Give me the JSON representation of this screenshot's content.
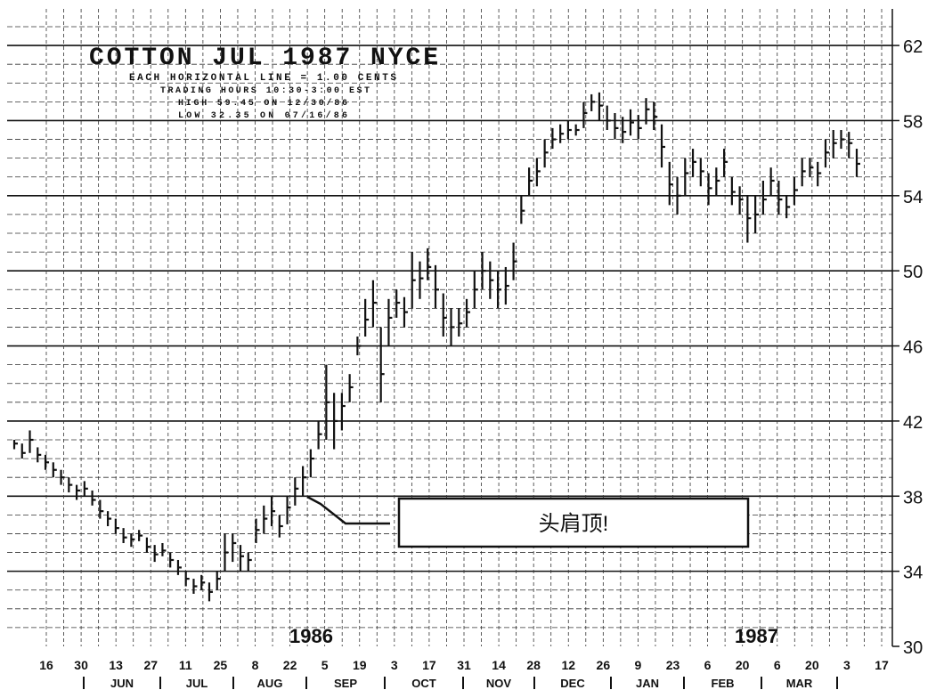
{
  "chart_data": {
    "type": "bar",
    "title": "COTTON JUL 1987 NYCE",
    "subtitle_lines": [
      "EACH HORIZONTAL LINE = 1.00 CENTS",
      "TRADING HOURS 10:30-3:00 EST",
      "HIGH 59.45 ON 12/30/86",
      "LOW 32.35 ON 07/16/86"
    ],
    "ylim": [
      30,
      63
    ],
    "y_ticks": [
      30,
      34,
      38,
      42,
      46,
      50,
      54,
      58,
      62
    ],
    "grid": true,
    "x_tick_labels": [
      "16",
      "30",
      "13",
      "27",
      "11",
      "25",
      "8",
      "22",
      "5",
      "19",
      "3",
      "17",
      "31",
      "14",
      "28",
      "12",
      "26",
      "9",
      "23",
      "6",
      "20",
      "6",
      "20",
      "3",
      "17"
    ],
    "month_labels": [
      "JUN",
      "JUL",
      "AUG",
      "SEP",
      "OCT",
      "NOV",
      "DEC",
      "JAN",
      "FEB",
      "MAR"
    ],
    "year_labels": [
      "1986",
      "1987"
    ],
    "annotation": "头肩顶!",
    "series": [
      {
        "values": [
          [
            40.5,
            41.0,
            40.8
          ],
          [
            40.0,
            40.8,
            40.3
          ],
          [
            40.3,
            41.5,
            41.0
          ],
          [
            39.8,
            40.6,
            40.2
          ],
          [
            39.4,
            40.2,
            39.8
          ],
          [
            39.0,
            39.8,
            39.4
          ],
          [
            38.6,
            39.4,
            39.0
          ],
          [
            38.2,
            39.0,
            38.6
          ],
          [
            37.8,
            38.6,
            38.3
          ],
          [
            38.0,
            38.8,
            38.4
          ],
          [
            37.5,
            38.3,
            37.8
          ],
          [
            36.8,
            37.8,
            37.2
          ],
          [
            36.4,
            37.2,
            36.8
          ],
          [
            36.0,
            36.8,
            36.3
          ],
          [
            35.5,
            36.3,
            35.8
          ],
          [
            35.3,
            36.0,
            35.7
          ],
          [
            35.6,
            36.2,
            35.9
          ],
          [
            35.0,
            35.8,
            35.3
          ],
          [
            34.5,
            35.4,
            34.9
          ],
          [
            34.8,
            35.5,
            35.1
          ],
          [
            34.2,
            35.0,
            34.6
          ],
          [
            33.8,
            34.6,
            34.2
          ],
          [
            33.2,
            34.0,
            33.6
          ],
          [
            32.8,
            33.6,
            33.2
          ],
          [
            33.0,
            33.8,
            33.4
          ],
          [
            32.4,
            33.4,
            32.9
          ],
          [
            33.0,
            34.0,
            33.6
          ],
          [
            34.0,
            36.0,
            35.0
          ],
          [
            34.5,
            36.0,
            35.5
          ],
          [
            34.0,
            35.4,
            34.8
          ],
          [
            34.0,
            35.0,
            34.6
          ],
          [
            35.5,
            36.8,
            36.2
          ],
          [
            36.0,
            37.5,
            36.8
          ],
          [
            36.4,
            38.0,
            37.2
          ],
          [
            35.8,
            37.0,
            36.4
          ],
          [
            36.5,
            38.0,
            37.4
          ],
          [
            37.5,
            39.0,
            38.4
          ],
          [
            38.0,
            39.6,
            39.0
          ],
          [
            39.0,
            40.5,
            40.0
          ],
          [
            40.5,
            42.0,
            41.3
          ],
          [
            41.0,
            45.0,
            43.0
          ],
          [
            40.5,
            43.5,
            42.0
          ],
          [
            41.5,
            43.5,
            42.8
          ],
          [
            43.0,
            44.5,
            43.8
          ],
          [
            45.5,
            46.5,
            46.0
          ],
          [
            46.5,
            48.5,
            47.4
          ],
          [
            47.0,
            49.5,
            48.3
          ],
          [
            43.0,
            47.0,
            44.5
          ],
          [
            46.0,
            48.5,
            47.5
          ],
          [
            47.5,
            49.0,
            48.3
          ],
          [
            47.0,
            48.6,
            47.8
          ],
          [
            48.0,
            51.0,
            49.5
          ],
          [
            48.5,
            50.5,
            49.6
          ],
          [
            49.5,
            51.2,
            50.2
          ],
          [
            48.0,
            50.3,
            49.0
          ],
          [
            46.5,
            48.8,
            47.5
          ],
          [
            46.0,
            48.0,
            47.0
          ],
          [
            46.5,
            48.0,
            47.2
          ],
          [
            47.0,
            48.5,
            47.8
          ],
          [
            48.0,
            50.0,
            49.0
          ],
          [
            49.0,
            51.0,
            50.0
          ],
          [
            48.5,
            50.5,
            49.5
          ],
          [
            48.0,
            50.0,
            49.0
          ],
          [
            48.2,
            50.2,
            49.2
          ],
          [
            49.5,
            51.5,
            50.5
          ],
          [
            52.5,
            54.0,
            53.2
          ],
          [
            54.0,
            55.5,
            54.8
          ],
          [
            54.5,
            56.0,
            55.3
          ],
          [
            55.5,
            57.0,
            56.3
          ],
          [
            56.5,
            57.6,
            57.0
          ],
          [
            56.8,
            57.8,
            57.3
          ],
          [
            57.0,
            58.0,
            57.5
          ],
          [
            57.2,
            57.8,
            57.5
          ],
          [
            57.6,
            59.0,
            58.4
          ],
          [
            58.5,
            59.4,
            59.0
          ],
          [
            58.0,
            59.5,
            58.8
          ],
          [
            57.5,
            58.8,
            58.0
          ],
          [
            57.0,
            58.4,
            57.6
          ],
          [
            56.8,
            58.2,
            57.4
          ],
          [
            57.2,
            58.6,
            57.9
          ],
          [
            57.0,
            58.3,
            57.6
          ],
          [
            57.8,
            59.2,
            58.6
          ],
          [
            57.5,
            59.0,
            58.2
          ],
          [
            55.5,
            57.8,
            56.6
          ],
          [
            53.5,
            55.8,
            54.6
          ],
          [
            53.0,
            55.0,
            54.0
          ],
          [
            54.0,
            56.0,
            55.2
          ],
          [
            55.0,
            56.5,
            55.8
          ],
          [
            54.5,
            56.0,
            55.3
          ],
          [
            53.5,
            55.2,
            54.4
          ],
          [
            54.0,
            55.5,
            54.8
          ],
          [
            55.0,
            56.5,
            55.8
          ],
          [
            53.5,
            55.0,
            54.2
          ],
          [
            53.0,
            54.5,
            53.8
          ],
          [
            51.5,
            54.0,
            52.8
          ],
          [
            52.0,
            54.0,
            53.0
          ],
          [
            53.0,
            54.8,
            53.8
          ],
          [
            54.0,
            55.5,
            54.8
          ],
          [
            53.0,
            54.8,
            53.8
          ],
          [
            52.8,
            54.0,
            53.4
          ],
          [
            53.5,
            55.0,
            54.3
          ],
          [
            54.5,
            56.0,
            55.3
          ],
          [
            55.0,
            56.0,
            55.5
          ],
          [
            54.5,
            55.8,
            55.2
          ],
          [
            55.5,
            57.0,
            56.3
          ],
          [
            56.0,
            57.5,
            56.8
          ],
          [
            56.5,
            57.5,
            57.0
          ],
          [
            56.0,
            57.4,
            56.8
          ],
          [
            55.0,
            56.5,
            55.7
          ]
        ]
      }
    ]
  },
  "colors": {
    "ink": "#111111",
    "background": "#ffffff"
  }
}
